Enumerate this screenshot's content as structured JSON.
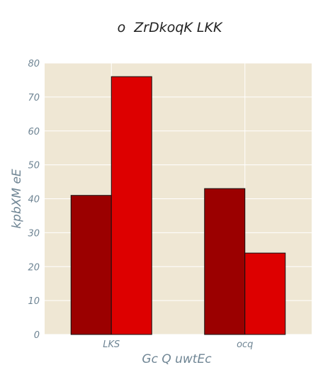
{
  "chart_data": {
    "type": "bar",
    "title": "o  ZrDkoqK LKK",
    "xlabel": "Gc Q uwtEc",
    "ylabel": "kpbXM eE",
    "categories": [
      "LKS",
      "ocq"
    ],
    "series": [
      {
        "values": [
          41,
          43
        ],
        "color": "#9b0000"
      },
      {
        "values": [
          76,
          24
        ],
        "color": "#dd0000"
      }
    ],
    "ylim": [
      0,
      80
    ],
    "yticks": [
      0,
      10,
      20,
      30,
      40,
      50,
      60,
      70,
      80
    ],
    "grid": true,
    "plot_background": "#efe7d4",
    "grid_color": "#ffffff",
    "bar_edge_color": "#111111",
    "text_color": "#6f8594",
    "title_color": "#222222"
  }
}
